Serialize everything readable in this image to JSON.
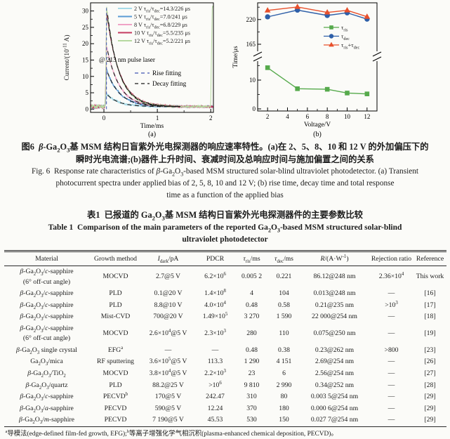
{
  "figure": {
    "caption_lines": [
      {
        "style": "cn",
        "html": "图6&nbsp;&nbsp;<i>β</i>-Ga<sub>2</sub>O<sub>3</sub>基 MSM 结构日盲紫外光电探测器的响应速率特性。(a)在 2、5、8、10 和 12 V 的外加偏压下的"
      },
      {
        "style": "cn",
        "html": "瞬时光电流谱;(b)器件上升时间、衰减时间及总响应时间与施加偏置之间的关系"
      },
      {
        "style": "en",
        "html": "Fig. 6&nbsp;&nbsp;Response rate characteristics of <i>β</i>-Ga<sub>2</sub>O<sub>3</sub>-based MSM structured solar-blind ultraviolet photodetector. (a) Transient"
      },
      {
        "style": "en",
        "html": "photocurrent spectra under applied bias of 2, 5, 8, 10 and 12 V; (b) rise time, decay time and total response"
      },
      {
        "style": "en",
        "html": "time as a function of the applied bias"
      }
    ]
  },
  "chart_data": [
    {
      "id": "a",
      "type": "line",
      "sublabel": "(a)",
      "xlabel": "Time/ms",
      "ylabel_segments": [
        [
          "Current/(10",
          0
        ],
        [
          "-11",
          2
        ],
        [
          " A)",
          0
        ]
      ],
      "xlim": [
        -0.25,
        2.05
      ],
      "ylim": [
        -1,
        32.5
      ],
      "xticks": [
        0,
        1,
        2
      ],
      "xticks_minor": [
        0.5,
        1.5
      ],
      "yticks": [
        0,
        5,
        10,
        15,
        20,
        25,
        30
      ],
      "annotation": "@ 213 nm pulse laser",
      "series": [
        {
          "bias": "2 V",
          "tau_ris_us": 14.3,
          "tau_dec_us": 226,
          "peak_current_e-11A": 4.6,
          "color": "#a6dbe8",
          "label_segments": [
            [
              "2 V τ",
              0
            ],
            [
              "ris",
              1
            ],
            [
              "/τ",
              0
            ],
            [
              "dec",
              1
            ],
            [
              "=14.3/226 μs",
              0
            ]
          ]
        },
        {
          "bias": "5 V",
          "tau_ris_us": 7.0,
          "tau_dec_us": 241,
          "peak_current_e-11A": 12.0,
          "color": "#5b9bd5",
          "label_segments": [
            [
              "5 V τ",
              0
            ],
            [
              "ris",
              1
            ],
            [
              "/τ",
              0
            ],
            [
              "dec",
              1
            ],
            [
              "=7.0/241 μs",
              0
            ]
          ]
        },
        {
          "bias": "8 V",
          "tau_ris_us": 6.8,
          "tau_dec_us": 229,
          "peak_current_e-11A": 19.3,
          "color": "#f0a3c6",
          "label_segments": [
            [
              "8 V τ",
              0
            ],
            [
              "ris",
              1
            ],
            [
              "/τ",
              0
            ],
            [
              "dec",
              1
            ],
            [
              "=6.8/229 μs",
              0
            ]
          ]
        },
        {
          "bias": "10 V",
          "tau_ris_us": 5.5,
          "tau_dec_us": 235,
          "peak_current_e-11A": 29.8,
          "color": "#c43a60",
          "label_segments": [
            [
              "10 V τ",
              0
            ],
            [
              "ris",
              1
            ],
            [
              "/τ",
              0
            ],
            [
              "dec",
              1
            ],
            [
              "=5.5/235 μs",
              0
            ]
          ]
        },
        {
          "bias": "12 V",
          "tau_ris_us": 5.2,
          "tau_dec_us": 221,
          "peak_current_e-11A": 31.4,
          "color": "#b6d9a0",
          "spike_at_end": true,
          "label_segments": [
            [
              "12 V τ",
              0
            ],
            [
              "ris",
              1
            ],
            [
              "/τ",
              0
            ],
            [
              "dec",
              1
            ],
            [
              "=5.2/221 μs",
              0
            ]
          ]
        }
      ],
      "fits": [
        {
          "label": "Rise fitting",
          "color": "#4054b2"
        },
        {
          "label": "Decay fitting",
          "color": "#1a1a1a"
        }
      ]
    },
    {
      "id": "b",
      "type": "line",
      "sublabel": "(b)",
      "xlabel": "Voltage/V",
      "ylabel": "Time/μs",
      "x": [
        2,
        5,
        8,
        10,
        12
      ],
      "xticks": [
        2,
        4,
        6,
        8,
        10,
        12
      ],
      "xticks_minor": [
        3,
        5,
        7,
        9,
        11
      ],
      "broken_axis": {
        "lower_ticks": [
          0,
          10
        ],
        "lower_minor": [
          5,
          15
        ],
        "upper_ticks": [
          165,
          220
        ],
        "upper_minor": [
          192.5,
          247.5
        ]
      },
      "series": [
        {
          "name": "tau_ris",
          "marker": "square",
          "color": "#56aa4c",
          "axis": "lower",
          "values": [
            14.3,
            7.0,
            6.8,
            5.5,
            5.2
          ],
          "label_segments": [
            [
              "τ",
              0
            ],
            [
              "ris",
              1
            ]
          ]
        },
        {
          "name": "tau_dec",
          "marker": "circle",
          "color": "#2e5fa8",
          "axis": "upper",
          "values": [
            226,
            241,
            229,
            235,
            221
          ],
          "label_segments": [
            [
              "τ",
              0
            ],
            [
              "dec",
              1
            ]
          ]
        },
        {
          "name": "tau_ris_plus_tau_dec",
          "marker": "triangle",
          "color": "#e8502b",
          "axis": "upper",
          "values": [
            240.3,
            248.0,
            235.8,
            240.5,
            226.2
          ],
          "label_segments": [
            [
              "τ",
              0
            ],
            [
              "ris",
              1
            ],
            [
              "+τ",
              0
            ],
            [
              "dec",
              1
            ]
          ]
        }
      ]
    }
  ],
  "table": {
    "title_cn": "表1&nbsp;&nbsp;已报道的 Ga<sub>2</sub>O<sub>3</sub>基 MSM 结构日盲紫外光电探测器件的主要参数比较",
    "title_en_line1": "Table 1&nbsp;&nbsp;Comparison of the main parameters of the reported Ga<sub>2</sub>O<sub>3</sub>-based MSM structured solar-blind",
    "title_en_line2": "ultraviolet photodetector",
    "columns": [
      "Material",
      "Growth method",
      "<i>I</i><sub>dark</sub>/pA",
      "PDCR",
      "<i>τ</i><sub>ris</sub>/ms",
      "<i>τ</i><sub>dec</sub>/ms",
      "<i>R</i>/(A·W<sup>-1</sup>)",
      "Rejection ratio",
      "Reference"
    ],
    "rows": [
      {
        "cells": [
          "<i>β</i>-Ga<sub>2</sub>O<sub>3</sub>/<i>c</i>-sapphire<br>(6° off-cut angle)",
          "MOCVD",
          "2.7@5 V",
          "6.2×10<sup>6</sup>",
          "0.005 2",
          "0.221",
          "86.12@248 nm",
          "2.36×10<sup>4</sup>",
          "This work"
        ]
      },
      {
        "cells": [
          "<i>β</i>-Ga<sub>2</sub>O<sub>3</sub>/<i>c</i>-sapphire",
          "PLD",
          "0.1@20 V",
          "1.4×10<sup>8</sup>",
          "4",
          "104",
          "0.013@248 nm",
          "—",
          "[16]"
        ]
      },
      {
        "cells": [
          "<i>β</i>-Ga<sub>2</sub>O<sub>3</sub>/<i>c</i>-sapphire",
          "PLD",
          "8.8@10 V",
          "4.0×10<sup>4</sup>",
          "0.48",
          "0.58",
          "0.21@235 nm",
          "&gt;10<sup>3</sup>",
          "[17]"
        ]
      },
      {
        "cells": [
          "<i>β</i>-Ga<sub>2</sub>O<sub>3</sub>/<i>c</i>-sapphire",
          "Mist-CVD",
          "700@20 V",
          "1.49×10<sup>5</sup>",
          "3 270",
          "1 590",
          "22 000@254 nm",
          "—",
          "[18]"
        ]
      },
      {
        "cells": [
          "<i>β</i>-Ga<sub>2</sub>O<sub>3</sub>/<i>c</i>-sapphire<br>(6° off-cut angle)",
          "MOCVD",
          "2.6×10<sup>4</sup>@5 V",
          "2.3×10<sup>3</sup>",
          "280",
          "110",
          "0.075@250 nm",
          "—",
          "[19]"
        ]
      },
      {
        "cells": [
          "<i>β</i>-Ga<sub>2</sub>O<sub>3</sub> single crystal",
          "EFG<sup>a</sup>",
          "—",
          "—",
          "0.48",
          "0.38",
          "0.23@262 nm",
          "&gt;800",
          "[23]"
        ]
      },
      {
        "cells": [
          "Ga<sub>2</sub>O<sub>3</sub>/mica",
          "RF sputtering",
          "3.6×10<sup>5</sup>@5 V",
          "113.3",
          "1 290",
          "4 151",
          "2.69@254 nm",
          "—",
          "[26]"
        ]
      },
      {
        "cells": [
          "<i>β</i>-Ga<sub>2</sub>O<sub>3</sub>/TiO<sub>2</sub>",
          "MOCVD",
          "3.8×10<sup>4</sup>@5 V",
          "2.2×10<sup>3</sup>",
          "23",
          "6",
          "2.56@254 nm",
          "—",
          "[27]"
        ]
      },
      {
        "cells": [
          "<i>β</i>-Ga<sub>2</sub>O<sub>3</sub>/quartz",
          "PLD",
          "88.2@25 V",
          "&gt;10<sup>6</sup>",
          "9 810",
          "2 990",
          "0.34@252 nm",
          "—",
          "[28]"
        ]
      },
      {
        "cells": [
          "<i>β</i>-Ga<sub>2</sub>O<sub>3</sub>/<i>c</i>-sapphire",
          "PECVD<sup>b</sup>",
          "170@5 V",
          "242.47",
          "310",
          "80",
          "0.003 5@254 nm",
          "—",
          "[29]"
        ]
      },
      {
        "cells": [
          "<i>β</i>-Ga<sub>2</sub>O<sub>3</sub>/<i>a</i>-sapphire",
          "PECVD",
          "590@5 V",
          "12.24",
          "370",
          "180",
          "0.000 6@254 nm",
          "—",
          "[29]"
        ]
      },
      {
        "cells": [
          "<i>β</i>-Ga<sub>2</sub>O<sub>3</sub>/<i>m</i>-sapphire",
          "PECVD",
          "7 190@5 V",
          "45.53",
          "530",
          "150",
          "0.027 7@254 nm",
          "—",
          "[29]"
        ]
      }
    ],
    "footnote": "<sup>a</sup>导模法(edge-defined film-fed growth, EFG);<sup>b</sup>等离子增强化学气相沉积(plasma-enhanced chemical deposition, PECVD)。"
  }
}
